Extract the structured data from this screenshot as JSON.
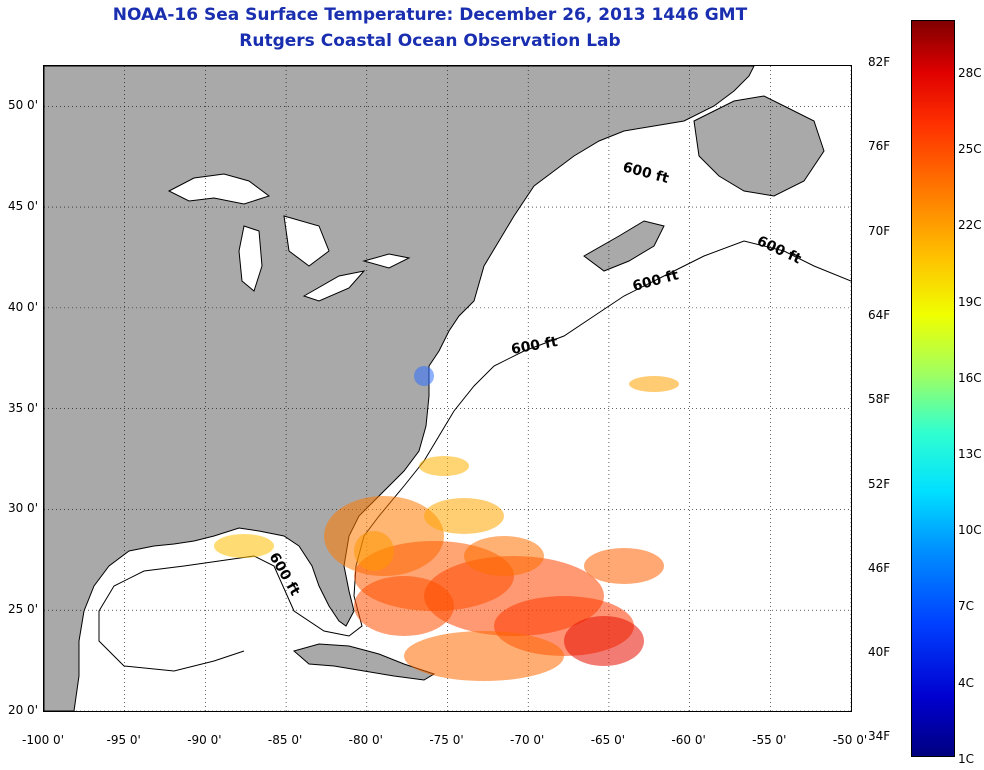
{
  "title_line1": "NOAA-16 Sea Surface Temperature:  December 26, 2013 1446 GMT",
  "title_line2": "Rutgers Coastal Ocean Observation Lab",
  "map": {
    "lon_range": [
      -100,
      -50
    ],
    "lat_range": [
      20,
      52
    ],
    "x_ticks": [
      "-100 0'",
      "-95 0'",
      "-90 0'",
      "-85 0'",
      "-80 0'",
      "-75 0'",
      "-70 0'",
      "-65 0'",
      "-60 0'",
      "-55 0'",
      "-50 0'"
    ],
    "y_ticks": [
      "50 0'",
      "45 0'",
      "40 0'",
      "35 0'",
      "30 0'",
      "25 0'",
      "20 0'"
    ],
    "grid": "dotted",
    "land_color": "#a9a9a9",
    "contour_label": "600 ft"
  },
  "colorbar": {
    "f_labels": [
      "82F",
      "76F",
      "70F",
      "64F",
      "58F",
      "52F",
      "46F",
      "40F",
      "34F"
    ],
    "c_labels": [
      "28C",
      "25C",
      "22C",
      "19C",
      "16C",
      "13C",
      "10C",
      "7C",
      "4C",
      "1C"
    ]
  }
}
